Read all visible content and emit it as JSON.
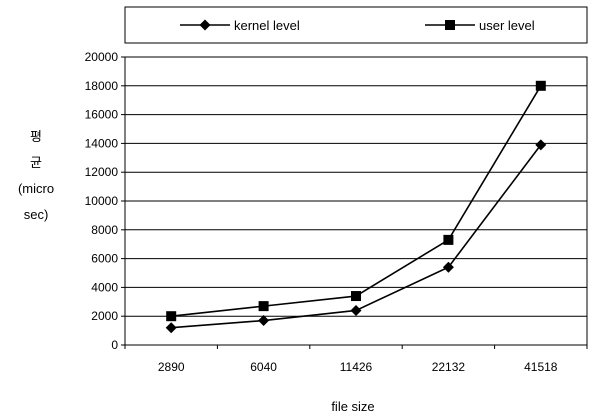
{
  "chart_data": {
    "type": "line",
    "title": "",
    "xlabel": "file size",
    "ylabel_lines": [
      "평",
      "균",
      "(micro",
      "sec)"
    ],
    "categories": [
      "2890",
      "6040",
      "11426",
      "22132",
      "41518"
    ],
    "ylim": [
      0,
      20000
    ],
    "yticks": [
      0,
      2000,
      4000,
      6000,
      8000,
      10000,
      12000,
      14000,
      16000,
      18000,
      20000
    ],
    "grid": "horizontal",
    "legend_position": "top",
    "series": [
      {
        "name": "kernel level",
        "marker": "diamond",
        "color": "#000000",
        "values": [
          1200,
          1700,
          2400,
          5400,
          13900
        ]
      },
      {
        "name": "user level",
        "marker": "square",
        "color": "#000000",
        "values": [
          2000,
          2700,
          3400,
          7300,
          18000
        ]
      }
    ]
  }
}
